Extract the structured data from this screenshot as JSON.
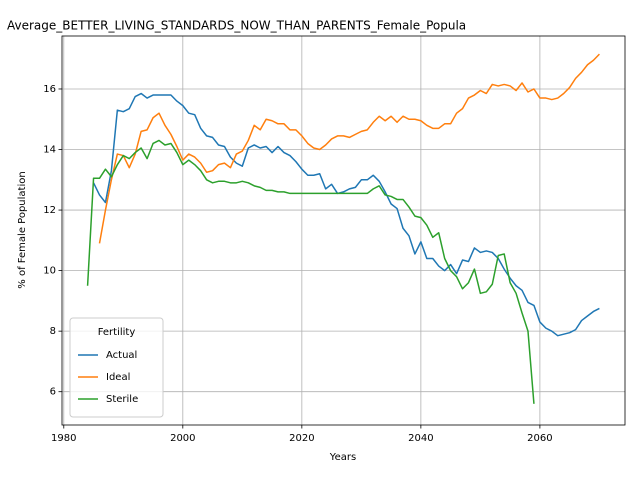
{
  "chart_data": {
    "type": "line",
    "title": "Average_BETTER_LIVING_STANDARDS_NOW_THAN_PARENTS_Female_Popula",
    "xlabel": "Years",
    "ylabel": "% of Female Population",
    "x": [
      1984,
      1985,
      1986,
      1987,
      1988,
      1989,
      1990,
      1991,
      1992,
      1993,
      1994,
      1995,
      1996,
      1997,
      1998,
      1999,
      2000,
      2001,
      2002,
      2003,
      2004,
      2005,
      2006,
      2007,
      2008,
      2009,
      2010,
      2011,
      2012,
      2013,
      2014,
      2015,
      2016,
      2017,
      2018,
      2019,
      2020,
      2021,
      2022,
      2023,
      2024,
      2025,
      2026,
      2027,
      2028,
      2029,
      2030,
      2031,
      2032,
      2033,
      2034,
      2035,
      2036,
      2037,
      2038,
      2039,
      2040,
      2041,
      2042,
      2043,
      2044,
      2045,
      2046,
      2047,
      2048,
      2049,
      2050,
      2051,
      2052,
      2053,
      2054,
      2055,
      2056,
      2057,
      2058,
      2059,
      2060,
      2061,
      2062,
      2063,
      2064,
      2065,
      2066,
      2067,
      2068,
      2069,
      2070
    ],
    "series": [
      {
        "name": "Actual",
        "color": "#1f77b4",
        "values": [
          null,
          12.9,
          12.5,
          12.25,
          13.3,
          15.3,
          15.25,
          15.35,
          15.75,
          15.85,
          15.7,
          15.8,
          15.8,
          15.8,
          15.8,
          15.6,
          15.45,
          15.2,
          15.15,
          14.7,
          14.45,
          14.4,
          14.15,
          14.1,
          13.75,
          13.55,
          13.45,
          14.05,
          14.15,
          14.05,
          14.1,
          13.9,
          14.1,
          13.9,
          13.8,
          13.6,
          13.35,
          13.15,
          13.15,
          13.2,
          12.7,
          12.85,
          12.55,
          12.6,
          12.7,
          12.75,
          13.0,
          13.0,
          13.15,
          12.95,
          12.6,
          12.2,
          12.05,
          11.4,
          11.15,
          10.55,
          10.95,
          10.4,
          10.4,
          10.15,
          10.0,
          10.2,
          9.9,
          10.35,
          10.3,
          10.75,
          10.6,
          10.65,
          10.6,
          10.4,
          10.05,
          9.75,
          9.5,
          9.35,
          8.95,
          8.85,
          8.3,
          8.1,
          8.0,
          7.85,
          7.9,
          7.95,
          8.05,
          8.35,
          8.5,
          8.65,
          8.75
        ]
      },
      {
        "name": "Ideal",
        "color": "#ff7f0e",
        "values": [
          null,
          null,
          10.9,
          12.0,
          13.0,
          13.85,
          13.8,
          13.4,
          13.85,
          14.6,
          14.65,
          15.05,
          15.2,
          14.8,
          14.5,
          14.1,
          13.65,
          13.85,
          13.75,
          13.55,
          13.25,
          13.3,
          13.5,
          13.55,
          13.4,
          13.85,
          13.95,
          14.3,
          14.8,
          14.65,
          15.0,
          14.95,
          14.85,
          14.85,
          14.65,
          14.65,
          14.45,
          14.2,
          14.05,
          14.0,
          14.15,
          14.35,
          14.45,
          14.45,
          14.4,
          14.5,
          14.6,
          14.65,
          14.9,
          15.1,
          14.95,
          15.1,
          14.9,
          15.1,
          15.0,
          15.0,
          14.95,
          14.8,
          14.7,
          14.7,
          14.85,
          14.85,
          15.2,
          15.35,
          15.7,
          15.8,
          15.95,
          15.85,
          16.15,
          16.1,
          16.15,
          16.1,
          15.95,
          16.2,
          15.9,
          16.0,
          15.7,
          15.7,
          15.65,
          15.7,
          15.85,
          16.05,
          16.35,
          16.55,
          16.8,
          16.95,
          17.15
        ]
      },
      {
        "name": "Sterile",
        "color": "#2ca02c",
        "values": [
          9.5,
          13.05,
          13.05,
          13.35,
          13.1,
          13.5,
          13.8,
          13.7,
          13.9,
          14.05,
          13.7,
          14.2,
          14.3,
          14.15,
          14.2,
          13.9,
          13.5,
          13.65,
          13.5,
          13.3,
          13.0,
          12.9,
          12.95,
          12.95,
          12.9,
          12.9,
          12.95,
          12.9,
          12.8,
          12.75,
          12.65,
          12.65,
          12.6,
          12.6,
          12.55,
          12.55,
          12.55,
          12.55,
          12.55,
          12.55,
          12.55,
          12.55,
          12.55,
          12.55,
          12.55,
          12.55,
          12.55,
          12.55,
          12.7,
          12.8,
          12.5,
          12.45,
          12.35,
          12.35,
          12.1,
          11.8,
          11.75,
          11.5,
          11.1,
          11.25,
          10.4,
          10.0,
          9.8,
          9.4,
          9.6,
          10.05,
          9.25,
          9.3,
          9.55,
          10.5,
          10.55,
          9.6,
          9.25,
          8.6,
          8.0,
          5.6,
          null,
          null,
          null,
          null,
          null,
          null,
          null,
          null,
          null,
          null,
          null
        ]
      }
    ],
    "xlim": [
      1979.7,
      2074.3
    ],
    "ylim": [
      4.9,
      17.75
    ],
    "xticks": [
      1980,
      2000,
      2020,
      2040,
      2060
    ],
    "yticks": [
      6,
      8,
      10,
      12,
      14,
      16
    ],
    "grid": true,
    "legend_title": "Fertility",
    "legend_loc": "lower left"
  }
}
